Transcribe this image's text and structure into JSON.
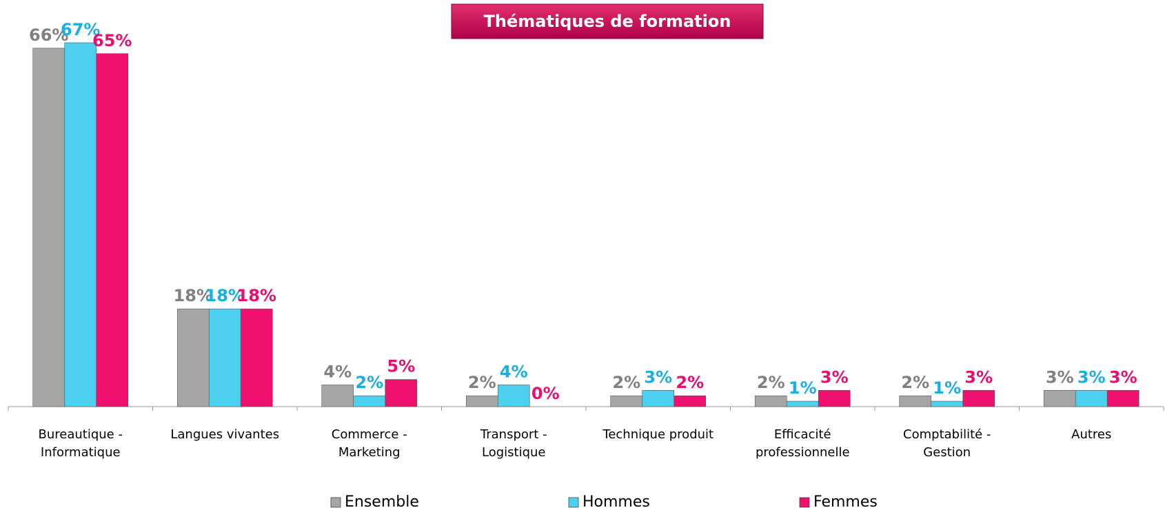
{
  "chart_data": {
    "type": "bar",
    "title": "Thématiques de formation",
    "categories": [
      "Bureautique - Informatique",
      "Langues vivantes",
      "Commerce - Marketing",
      "Transport - Logistique",
      "Technique produit",
      "Efficacité professionnelle",
      "Comptabilité - Gestion",
      "Autres"
    ],
    "series": [
      {
        "name": "Ensemble",
        "color": "#a6a6a6",
        "label_color": "#808080",
        "values": [
          66,
          18,
          4,
          2,
          2,
          2,
          2,
          3
        ],
        "value_labels": [
          "66%",
          "18%",
          "4%",
          "2%",
          "2%",
          "2%",
          "2%",
          "3%"
        ]
      },
      {
        "name": "Hommes",
        "color": "#4dcfef",
        "label_color": "#1aafe0",
        "values": [
          67,
          18,
          2,
          4,
          3,
          1,
          1,
          3
        ],
        "value_labels": [
          "67%",
          "18%",
          "2%",
          "4%",
          "3%",
          "1%",
          "1%",
          "3%"
        ]
      },
      {
        "name": "Femmes",
        "color": "#f0116e",
        "label_color": "#e8106e",
        "values": [
          65,
          18,
          5,
          0,
          2,
          3,
          3,
          3
        ],
        "value_labels": [
          "65%",
          "18%",
          "5%",
          "0%",
          "2%",
          "3%",
          "3%",
          "3%"
        ]
      }
    ]
  }
}
